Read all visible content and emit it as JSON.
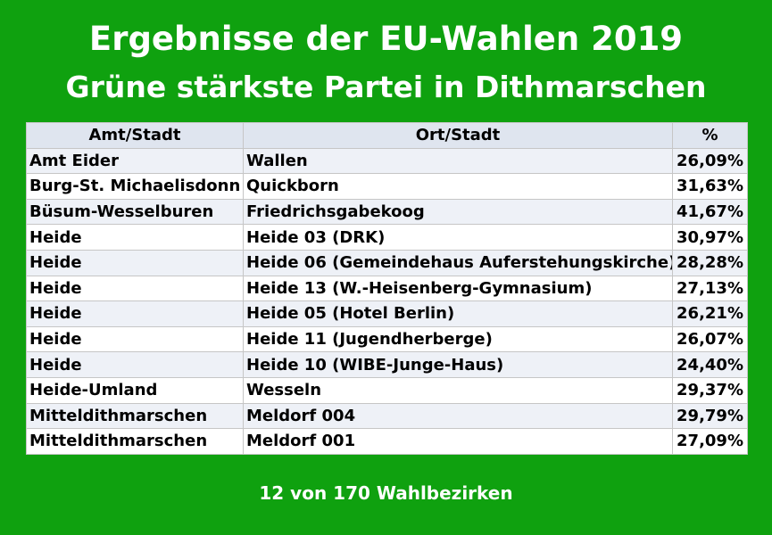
{
  "title": "Ergebnisse der EU-Wahlen 2019",
  "subtitle": "Grüne stärkste Partei in Dithmarschen",
  "colors": {
    "background": "#0fa10f",
    "header_row": "#dfe5ef",
    "stripe": "#eef1f7"
  },
  "table": {
    "headers": [
      "Amt/Stadt",
      "Ort/Stadt",
      "%"
    ],
    "rows": [
      [
        "Amt Eider",
        "Wallen",
        "26,09%"
      ],
      [
        "Burg-St. Michaelisdonn",
        "Quickborn",
        "31,63%"
      ],
      [
        "Büsum-Wesselburen",
        "Friedrichsgabekoog",
        "41,67%"
      ],
      [
        "Heide",
        "Heide 03 (DRK)",
        "30,97%"
      ],
      [
        "Heide",
        "Heide 06 (Gemeindehaus Auferstehungskirche)",
        "28,28%"
      ],
      [
        "Heide",
        "Heide 13 (W.-Heisenberg-Gymnasium)",
        "27,13%"
      ],
      [
        "Heide",
        "Heide 05 (Hotel Berlin)",
        "26,21%"
      ],
      [
        "Heide",
        "Heide 11 (Jugendherberge)",
        "26,07%"
      ],
      [
        "Heide",
        "Heide 10 (WIBE-Junge-Haus)",
        "24,40%"
      ],
      [
        "Heide-Umland",
        "Wesseln",
        "29,37%"
      ],
      [
        "Mitteldithmarschen",
        "Meldorf 004",
        "29,79%"
      ],
      [
        "Mitteldithmarschen",
        "Meldorf 001",
        "27,09%"
      ]
    ]
  },
  "footer": "12 von 170 Wahlbezirken"
}
